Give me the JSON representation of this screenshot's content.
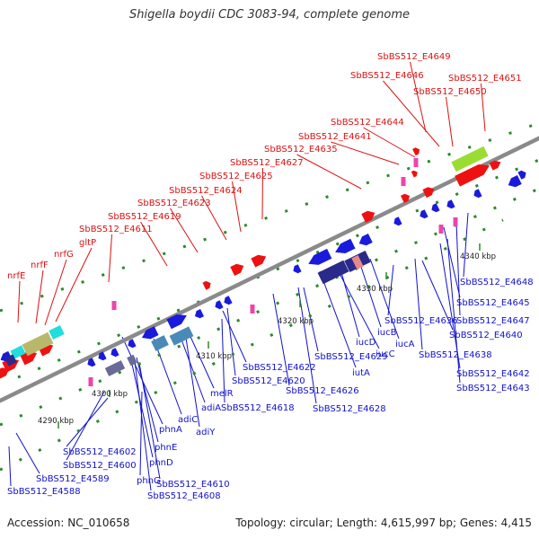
{
  "header": {
    "title": "Shigella boydii CDC 3083-94, complete genome"
  },
  "footer": {
    "accession": "Accession: NC_010658",
    "summary": "Topology: circular; Length: 4,615,997 bp; Genes: 4,415"
  },
  "colors": {
    "backbone": "#8a8a8a",
    "top_labels": "#dd1111",
    "bottom_labels": "#1111cc",
    "tick_green": "#2a8a2a",
    "gene_red": "#ee1111",
    "gene_blue": "#1a1add",
    "gene_navy": "#2a2a8a",
    "gene_slate": "#6a6a99",
    "gene_steel": "#4a8ab8",
    "gene_pink": "#ee44aa",
    "gene_cyan": "#22dddd",
    "gene_olive": "#b8b86a",
    "gene_lime": "#99dd33",
    "gene_salmon": "#e88888"
  },
  "scale": {
    "unit": "kbp",
    "ticks": [
      "4290 kbp",
      "4300 kbp",
      "4310 kbp",
      "4320 kbp",
      "4330 kbp",
      "4340 kbp"
    ]
  },
  "top_labels": [
    "nrfE",
    "nrfF",
    "nrfG",
    "gltP",
    "SbBS512_E4611",
    "SbBS512_E4619",
    "SbBS512_E4623",
    "SbBS512_E4624",
    "SbBS512_E4625",
    "SbBS512_E4627",
    "SbBS512_E4635",
    "SbBS512_E4641",
    "SbBS512_E4644",
    "SbBS512_E4646",
    "SbBS512_E4649",
    "SbBS512_E4650",
    "SbBS512_E4651"
  ],
  "bottom_labels": [
    "SbBS512_E4588",
    "SbBS512_E4589",
    "SbBS512_E4600",
    "SbBS512_E4602",
    "phnG",
    "phnD",
    "phnE",
    "SbBS512_E4608",
    "SbBS512_E4610",
    "phnA",
    "adiC",
    "adiY",
    "adiA",
    "melR",
    "SbBS512_E4618",
    "SbBS512_E4620",
    "SbBS512_E4622",
    "SbBS512_E4626",
    "SbBS512_E4628",
    "SbBS512_E4629",
    "iutA",
    "iucD",
    "iucC",
    "iucB",
    "iucA",
    "SbBS512_E4636",
    "SbBS512_E4638",
    "SbBS512_E4640",
    "SbBS512_E4642",
    "SbBS512_E4643",
    "SbBS512_E4645",
    "SbBS512_E4647",
    "SbBS512_E4648"
  ]
}
